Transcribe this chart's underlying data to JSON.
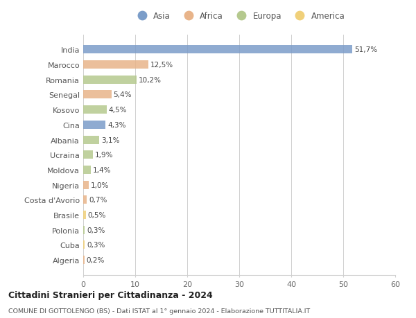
{
  "title": "Cittadini Stranieri per Cittadinanza - 2024",
  "subtitle": "COMUNE DI GOTTOLENGO (BS) - Dati ISTAT al 1° gennaio 2024 - Elaborazione TUTTITALIA.IT",
  "countries": [
    "India",
    "Marocco",
    "Romania",
    "Senegal",
    "Kosovo",
    "Cina",
    "Albania",
    "Ucraina",
    "Moldova",
    "Nigeria",
    "Costa d'Avorio",
    "Brasile",
    "Polonia",
    "Cuba",
    "Algeria"
  ],
  "values": [
    51.7,
    12.5,
    10.2,
    5.4,
    4.5,
    4.3,
    3.1,
    1.9,
    1.4,
    1.0,
    0.7,
    0.5,
    0.3,
    0.3,
    0.2
  ],
  "labels": [
    "51,7%",
    "12,5%",
    "10,2%",
    "5,4%",
    "4,5%",
    "4,3%",
    "3,1%",
    "1,9%",
    "1,4%",
    "1,0%",
    "0,7%",
    "0,5%",
    "0,3%",
    "0,3%",
    "0,2%"
  ],
  "continents": [
    "Asia",
    "Africa",
    "Europa",
    "Africa",
    "Europa",
    "Asia",
    "Europa",
    "Europa",
    "Europa",
    "Africa",
    "Africa",
    "America",
    "Europa",
    "America",
    "Africa"
  ],
  "colors": {
    "Asia": "#7b9dc9",
    "Africa": "#e8b48a",
    "Europa": "#b5c98e",
    "America": "#f0d07a"
  },
  "legend_order": [
    "Asia",
    "Africa",
    "Europa",
    "America"
  ],
  "xlim": [
    0,
    60
  ],
  "xticks": [
    0,
    10,
    20,
    30,
    40,
    50,
    60
  ],
  "background_color": "#ffffff",
  "grid_color": "#d0d0d0",
  "bar_height": 0.55
}
